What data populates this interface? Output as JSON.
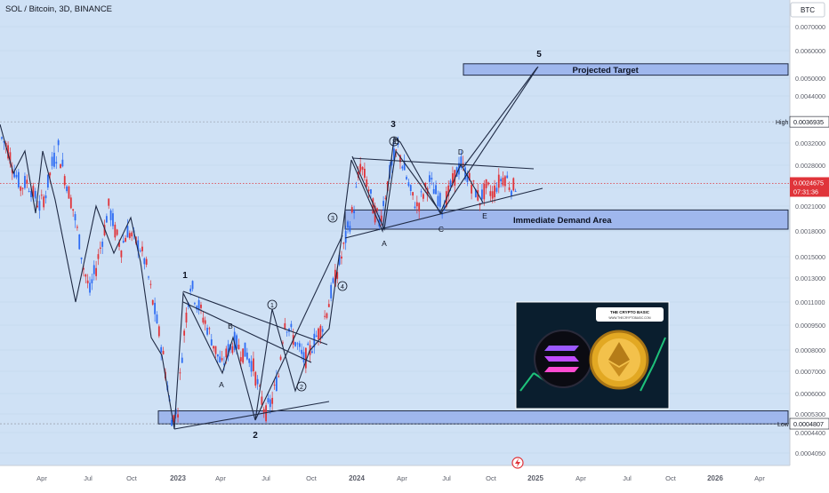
{
  "header": {
    "symbol_title": "SOL / Bitcoin, 3D, BINANCE",
    "quote_label": "BTC"
  },
  "colors": {
    "background": "#cfe1f5",
    "axis_bg": "#ffffff",
    "up": "#2f6df4",
    "down": "#e0343a",
    "zone_fill": "#8fa8ea",
    "zone_stroke": "#1f2a44",
    "line": "#1f2a44",
    "price_badge": "#e0343a",
    "current_line": "#e0343a"
  },
  "chart_data": {
    "type": "candlestick",
    "title": "SOL / Bitcoin, 3D, BINANCE",
    "y_axis_ticks": [
      "0.0070000",
      "0.0060000",
      "0.0050000",
      "0.0044000",
      "0.0032000",
      "0.0028000",
      "0.0024000",
      "0.0021000",
      "0.0018000",
      "0.0015000",
      "0.0013000",
      "0.0011000",
      "0.0009500",
      "0.0008000",
      "0.0007000",
      "0.0006000",
      "0.0005300",
      "0.0004400",
      "0.0004050"
    ],
    "x_axis_ticks": [
      "Apr",
      "Jul",
      "Oct",
      "2023",
      "Apr",
      "Jul",
      "Oct",
      "2024",
      "Apr",
      "Jul",
      "Oct",
      "2025",
      "Apr",
      "Jul",
      "Oct",
      "2026",
      "Apr"
    ],
    "high": {
      "label": "High",
      "value": "0.0036935"
    },
    "low": {
      "label": "Low",
      "value": "0.0004807"
    },
    "current_price": {
      "value": "0.0024675",
      "countdown": "07:31:36"
    },
    "zones": [
      {
        "name": "projected-target",
        "label": "Projected Target",
        "top": 0.0055,
        "bottom": 0.0051
      },
      {
        "name": "immediate-demand",
        "label": "Immediate Demand Area",
        "top": 0.00205,
        "bottom": 0.00182
      },
      {
        "name": "bottom-support",
        "label": "",
        "top": 0.00054,
        "bottom": 0.00048
      }
    ],
    "wave_labels": [
      "1",
      "A",
      "B",
      "2",
      "3",
      "A",
      "B",
      "C",
      "D",
      "E",
      "5"
    ],
    "circled_labels": [
      "1",
      "2",
      "3",
      "4",
      "3"
    ],
    "trend": [
      {
        "t": 0,
        "o": 0.00365,
        "c": 0.0033
      },
      {
        "t": 2,
        "o": 0.0033,
        "c": 0.0031
      },
      {
        "t": 4,
        "o": 0.0031,
        "c": 0.0027
      },
      {
        "t": 6,
        "o": 0.0027,
        "c": 0.0024
      },
      {
        "t": 8,
        "o": 0.0024,
        "c": 0.0025
      },
      {
        "t": 10,
        "o": 0.0025,
        "c": 0.0023
      },
      {
        "t": 12,
        "o": 0.0023,
        "c": 0.0021
      },
      {
        "t": 14,
        "o": 0.0021,
        "c": 0.0023
      },
      {
        "t": 16,
        "o": 0.0023,
        "c": 0.0028
      },
      {
        "t": 18,
        "o": 0.0028,
        "c": 0.0031
      },
      {
        "t": 20,
        "o": 0.0031,
        "c": 0.0026
      },
      {
        "t": 22,
        "o": 0.0026,
        "c": 0.0022
      },
      {
        "t": 24,
        "o": 0.0022,
        "c": 0.0018
      },
      {
        "t": 26,
        "o": 0.0018,
        "c": 0.0014
      },
      {
        "t": 28,
        "o": 0.0014,
        "c": 0.00118
      },
      {
        "t": 30,
        "o": 0.00118,
        "c": 0.0014
      },
      {
        "t": 32,
        "o": 0.0014,
        "c": 0.0017
      },
      {
        "t": 34,
        "o": 0.0017,
        "c": 0.0021
      },
      {
        "t": 36,
        "o": 0.0021,
        "c": 0.0018
      },
      {
        "t": 38,
        "o": 0.0018,
        "c": 0.0016
      },
      {
        "t": 40,
        "o": 0.0016,
        "c": 0.0018
      },
      {
        "t": 42,
        "o": 0.0018,
        "c": 0.0017
      },
      {
        "t": 44,
        "o": 0.0017,
        "c": 0.0016
      },
      {
        "t": 46,
        "o": 0.0016,
        "c": 0.0014
      },
      {
        "t": 48,
        "o": 0.0014,
        "c": 0.0011
      },
      {
        "t": 50,
        "o": 0.0011,
        "c": 0.0009
      },
      {
        "t": 52,
        "o": 0.0009,
        "c": 0.0007
      },
      {
        "t": 54,
        "o": 0.0007,
        "c": 0.0005
      },
      {
        "t": 56,
        "o": 0.0005,
        "c": 0.00055
      },
      {
        "t": 58,
        "o": 0.00055,
        "c": 0.0009
      },
      {
        "t": 60,
        "o": 0.0009,
        "c": 0.00125
      },
      {
        "t": 62,
        "o": 0.00125,
        "c": 0.0011
      },
      {
        "t": 64,
        "o": 0.0011,
        "c": 0.001
      },
      {
        "t": 66,
        "o": 0.001,
        "c": 0.0009
      },
      {
        "t": 68,
        "o": 0.0009,
        "c": 0.0008
      },
      {
        "t": 70,
        "o": 0.0008,
        "c": 0.00072
      },
      {
        "t": 72,
        "o": 0.00072,
        "c": 0.0008
      },
      {
        "t": 74,
        "o": 0.0008,
        "c": 0.00085
      },
      {
        "t": 76,
        "o": 0.00085,
        "c": 0.0008
      },
      {
        "t": 78,
        "o": 0.0008,
        "c": 0.00078
      },
      {
        "t": 80,
        "o": 0.00078,
        "c": 0.00072
      },
      {
        "t": 82,
        "o": 0.00072,
        "c": 0.0006
      },
      {
        "t": 84,
        "o": 0.0006,
        "c": 0.00053
      },
      {
        "t": 86,
        "o": 0.00053,
        "c": 0.00058
      },
      {
        "t": 88,
        "o": 0.00058,
        "c": 0.00068
      },
      {
        "t": 90,
        "o": 0.00068,
        "c": 0.00098
      },
      {
        "t": 92,
        "o": 0.00098,
        "c": 0.0009
      },
      {
        "t": 94,
        "o": 0.0009,
        "c": 0.00082
      },
      {
        "t": 96,
        "o": 0.00082,
        "c": 0.00075
      },
      {
        "t": 98,
        "o": 0.00075,
        "c": 0.0008
      },
      {
        "t": 100,
        "o": 0.0008,
        "c": 0.00088
      },
      {
        "t": 102,
        "o": 0.00088,
        "c": 0.00095
      },
      {
        "t": 104,
        "o": 0.00095,
        "c": 0.0011
      },
      {
        "t": 106,
        "o": 0.0011,
        "c": 0.0013
      },
      {
        "t": 108,
        "o": 0.0013,
        "c": 0.0015
      },
      {
        "t": 110,
        "o": 0.0015,
        "c": 0.0018
      },
      {
        "t": 112,
        "o": 0.0018,
        "c": 0.0021
      },
      {
        "t": 114,
        "o": 0.0021,
        "c": 0.0028
      },
      {
        "t": 116,
        "o": 0.0028,
        "c": 0.0025
      },
      {
        "t": 118,
        "o": 0.0025,
        "c": 0.0021
      },
      {
        "t": 120,
        "o": 0.0021,
        "c": 0.0019
      },
      {
        "t": 122,
        "o": 0.0019,
        "c": 0.0023
      },
      {
        "t": 124,
        "o": 0.0023,
        "c": 0.0028
      },
      {
        "t": 126,
        "o": 0.0028,
        "c": 0.0031
      },
      {
        "t": 128,
        "o": 0.0031,
        "c": 0.0027
      },
      {
        "t": 130,
        "o": 0.0027,
        "c": 0.0023
      },
      {
        "t": 132,
        "o": 0.0023,
        "c": 0.0021
      },
      {
        "t": 134,
        "o": 0.0021,
        "c": 0.0023
      },
      {
        "t": 136,
        "o": 0.0023,
        "c": 0.0025
      },
      {
        "t": 138,
        "o": 0.0025,
        "c": 0.0023
      },
      {
        "t": 140,
        "o": 0.0023,
        "c": 0.0021
      },
      {
        "t": 142,
        "o": 0.0021,
        "c": 0.0023
      },
      {
        "t": 144,
        "o": 0.0023,
        "c": 0.0026
      },
      {
        "t": 146,
        "o": 0.0026,
        "c": 0.0028
      },
      {
        "t": 148,
        "o": 0.0028,
        "c": 0.0026
      },
      {
        "t": 150,
        "o": 0.0026,
        "c": 0.0024
      },
      {
        "t": 152,
        "o": 0.0024,
        "c": 0.0022
      },
      {
        "t": 154,
        "o": 0.0022,
        "c": 0.0024
      },
      {
        "t": 156,
        "o": 0.0024,
        "c": 0.0023
      },
      {
        "t": 158,
        "o": 0.0023,
        "c": 0.0025
      },
      {
        "t": 160,
        "o": 0.0025,
        "c": 0.0026
      },
      {
        "t": 162,
        "o": 0.0026,
        "c": 0.0024
      },
      {
        "t": 164,
        "o": 0.0024,
        "c": 0.00247
      }
    ]
  },
  "thumbnail": {
    "badge_text": "THE CRYPTO BASIC",
    "badge_sub": "WWW.THECRYPTOBASIC.COM",
    "left_coin": "solana-logo",
    "right_coin": "ethereum-logo"
  }
}
